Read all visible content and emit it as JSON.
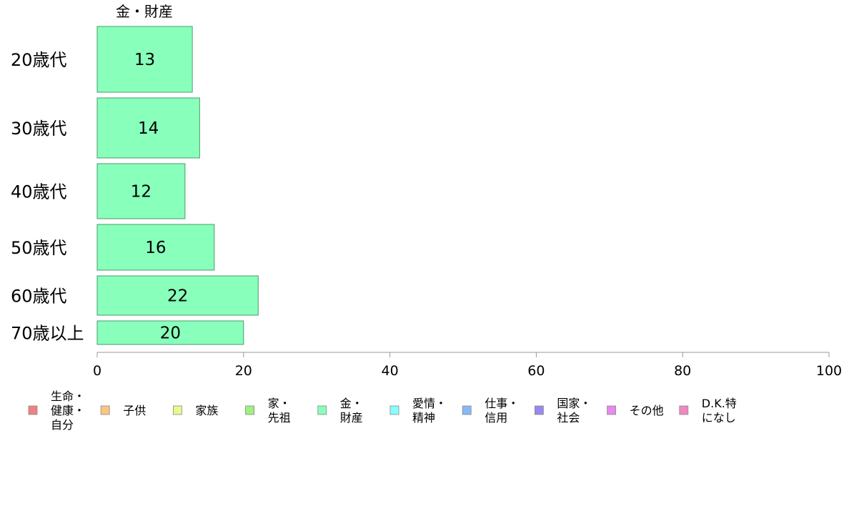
{
  "chart_data": {
    "type": "bar",
    "orientation": "horizontal",
    "title": "金・財産",
    "categories": [
      "20歳代",
      "30歳代",
      "40歳代",
      "50歳代",
      "60歳代",
      "70歳以上"
    ],
    "values": [
      13,
      14,
      12,
      16,
      22,
      20
    ],
    "value_labels": [
      "13",
      "14",
      "12",
      "16",
      "22",
      "20"
    ],
    "xlim": [
      0,
      100
    ],
    "xticks": [
      0,
      20,
      40,
      60,
      80,
      100
    ],
    "xtick_labels": [
      "0",
      "20",
      "40",
      "60",
      "80",
      "100"
    ],
    "bar_color": "#88ffbb",
    "bar_stroke": "#4e9a6e",
    "grid": false,
    "legend_position": "bottom",
    "legend": [
      {
        "lines": [
          "生命・",
          "健康・",
          "自分"
        ],
        "color": "#f08080"
      },
      {
        "lines": [
          "子供"
        ],
        "color": "#f8c880"
      },
      {
        "lines": [
          "家族"
        ],
        "color": "#e8f890"
      },
      {
        "lines": [
          "家・",
          "先祖"
        ],
        "color": "#a0f080"
      },
      {
        "lines": [
          "金・",
          "財産"
        ],
        "color": "#88ffbb"
      },
      {
        "lines": [
          "愛情・",
          "精神"
        ],
        "color": "#88ffff"
      },
      {
        "lines": [
          "仕事・",
          "信用"
        ],
        "color": "#88b8f8"
      },
      {
        "lines": [
          "国家・",
          "社会"
        ],
        "color": "#9988f0"
      },
      {
        "lines": [
          "その他"
        ],
        "color": "#e888f0"
      },
      {
        "lines": [
          "D.K.特",
          "になし"
        ],
        "color": "#f088c0"
      }
    ]
  }
}
